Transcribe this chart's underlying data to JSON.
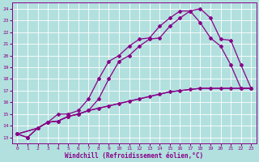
{
  "xlabel": "Windchill (Refroidissement éolien,°C)",
  "xlim": [
    -0.5,
    23.5
  ],
  "ylim": [
    12.5,
    24.5
  ],
  "xticks": [
    0,
    1,
    2,
    3,
    4,
    5,
    6,
    7,
    8,
    9,
    10,
    11,
    12,
    13,
    14,
    15,
    16,
    17,
    18,
    19,
    20,
    21,
    22,
    23
  ],
  "yticks": [
    13,
    14,
    15,
    16,
    17,
    18,
    19,
    20,
    21,
    22,
    23,
    24
  ],
  "bg_color": "#b2e0de",
  "grid_color": "#c8e8e8",
  "line_color": "#880088",
  "line1_x": [
    0,
    1,
    2,
    3,
    4,
    5,
    6,
    7,
    8,
    9,
    10,
    11,
    12,
    13,
    14,
    15,
    16,
    17,
    18,
    19,
    20,
    21,
    22,
    23
  ],
  "line1_y": [
    13.3,
    13.0,
    13.8,
    14.3,
    14.4,
    14.8,
    15.0,
    15.3,
    15.5,
    15.7,
    15.9,
    16.1,
    16.3,
    16.5,
    16.7,
    16.9,
    17.0,
    17.1,
    17.2,
    17.2,
    17.2,
    17.2,
    17.2,
    17.2
  ],
  "line2_x": [
    0,
    1,
    2,
    3,
    4,
    5,
    6,
    7,
    8,
    9,
    10,
    11,
    12,
    13,
    14,
    15,
    16,
    17,
    18,
    19,
    20,
    21,
    22,
    23
  ],
  "line2_y": [
    13.3,
    13.0,
    13.8,
    14.3,
    15.0,
    15.0,
    15.3,
    16.3,
    18.0,
    19.5,
    20.0,
    20.8,
    21.4,
    21.5,
    22.5,
    23.2,
    23.8,
    23.8,
    22.8,
    21.5,
    20.8,
    19.2,
    17.2,
    17.2
  ],
  "line3_x": [
    0,
    2,
    3,
    4,
    5,
    6,
    7,
    8,
    9,
    10,
    11,
    12,
    13,
    14,
    15,
    16,
    17,
    18,
    19,
    20,
    21,
    22,
    23
  ],
  "line3_y": [
    13.3,
    13.8,
    14.3,
    14.4,
    14.8,
    15.0,
    15.3,
    16.3,
    18.0,
    19.5,
    20.0,
    20.8,
    21.4,
    21.5,
    22.5,
    23.2,
    23.8,
    24.0,
    23.2,
    21.4,
    21.3,
    19.2,
    17.2
  ],
  "line4_x": [
    0,
    2,
    3,
    4,
    5,
    6,
    7,
    8,
    9,
    10,
    11,
    12,
    13,
    14,
    15,
    16,
    17,
    18,
    19,
    20,
    21,
    22,
    23
  ],
  "line4_y": [
    13.3,
    13.8,
    14.3,
    14.4,
    14.8,
    15.0,
    15.3,
    15.5,
    15.7,
    15.9,
    16.1,
    16.3,
    16.5,
    16.7,
    16.9,
    17.0,
    17.1,
    17.2,
    17.2,
    17.2,
    17.2,
    17.2,
    17.2
  ],
  "marker": "D",
  "markersize": 2.0,
  "linewidth": 0.9
}
